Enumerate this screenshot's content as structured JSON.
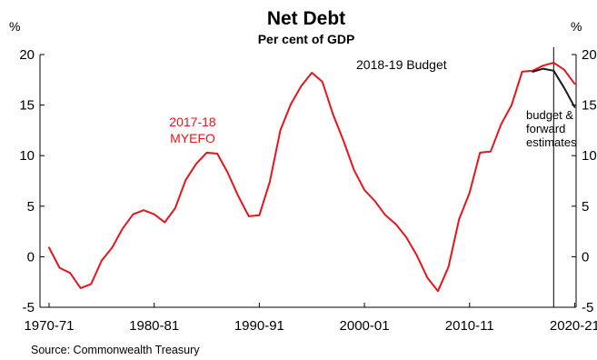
{
  "chart_data": {
    "type": "line",
    "title": "Net Debt",
    "subtitle": "Per cent of GDP",
    "unit_left": "%",
    "unit_right": "%",
    "source": "Source: Commonwealth Treasury",
    "xlabel": "",
    "ylabel": "%",
    "x_ticks": [
      "1970-71",
      "1980-81",
      "1990-91",
      "2000-01",
      "2010-11",
      "2020-21"
    ],
    "y_ticks": [
      "-5",
      "0",
      "5",
      "10",
      "15",
      "20"
    ],
    "ylim": [
      -5,
      20
    ],
    "xlim": [
      "1970-71",
      "2021-22"
    ],
    "grid": false,
    "vertical_marker": "2018-19",
    "x": [
      "1970-71",
      "1971-72",
      "1972-73",
      "1973-74",
      "1974-75",
      "1975-76",
      "1976-77",
      "1977-78",
      "1978-79",
      "1979-80",
      "1980-81",
      "1981-82",
      "1982-83",
      "1983-84",
      "1984-85",
      "1985-86",
      "1986-87",
      "1987-88",
      "1988-89",
      "1989-90",
      "1990-91",
      "1991-92",
      "1992-93",
      "1993-94",
      "1994-95",
      "1995-96",
      "1996-97",
      "1997-98",
      "1998-99",
      "1999-00",
      "2000-01",
      "2001-02",
      "2002-03",
      "2003-04",
      "2004-05",
      "2005-06",
      "2006-07",
      "2007-08",
      "2008-09",
      "2009-10",
      "2010-11",
      "2011-12",
      "2012-13",
      "2013-14",
      "2014-15",
      "2015-16",
      "2016-17",
      "2017-18",
      "2018-19",
      "2019-20",
      "2020-21"
    ],
    "series": [
      {
        "name": "2017-18 MYEFO",
        "color": "#e8141b",
        "values": [
          0.9,
          -1.1,
          -1.6,
          -3.1,
          -2.7,
          -0.4,
          0.9,
          2.8,
          4.2,
          4.6,
          4.2,
          3.4,
          4.8,
          7.6,
          9.2,
          10.3,
          10.2,
          8.3,
          6.0,
          4.0,
          4.1,
          7.4,
          12.5,
          15.1,
          16.9,
          18.2,
          17.3,
          14.1,
          11.5,
          8.6,
          6.6,
          5.5,
          4.1,
          3.2,
          1.9,
          0.1,
          -2.1,
          -3.4,
          -1.0,
          3.7,
          6.3,
          10.3,
          10.4,
          13.1,
          15.0,
          18.3,
          18.4,
          18.9,
          19.2,
          18.5,
          17.1
        ]
      },
      {
        "name": "2018-19 Budget",
        "color": "#1a1a1a",
        "x": [
          "2016-17",
          "2017-18",
          "2018-19",
          "2019-20",
          "2020-21"
        ],
        "values": [
          18.3,
          18.6,
          18.4,
          16.7,
          14.8
        ]
      }
    ],
    "annotations": {
      "myefo_label": [
        "2017-18",
        "MYEFO"
      ],
      "budget_label": "2018-19 Budget",
      "forward_label": [
        "budget &",
        "forward",
        "estimates"
      ]
    }
  }
}
